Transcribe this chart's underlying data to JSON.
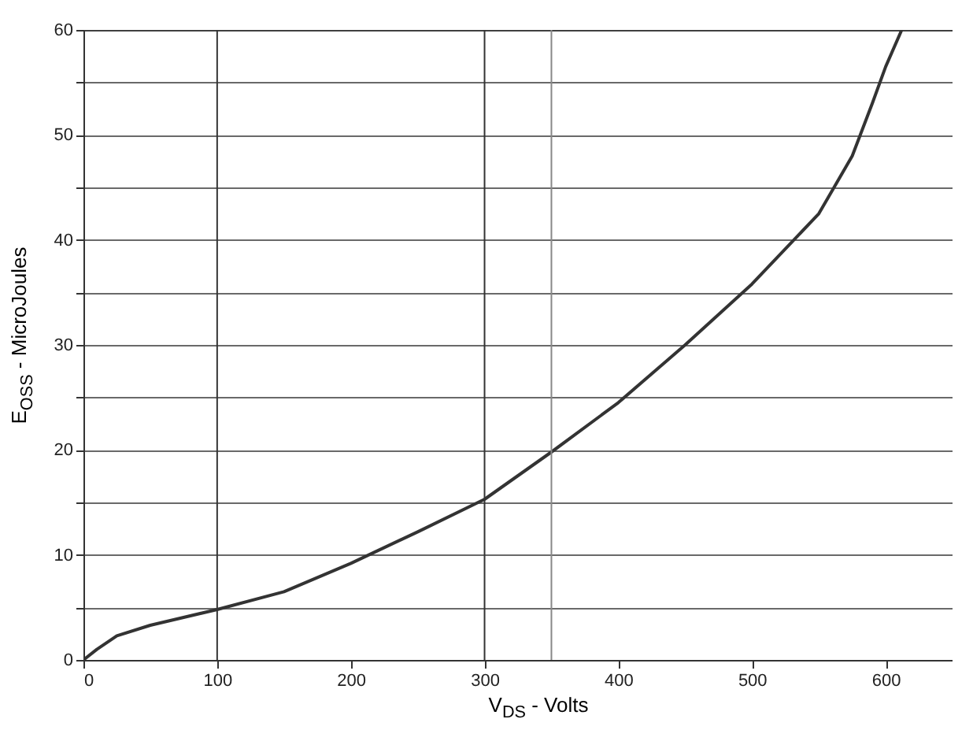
{
  "chart_data": {
    "type": "line",
    "xlabel": "V$_{DS}$ - Volts",
    "ylabel": "E$_{OSS}$ - MicroJoules",
    "x": [
      0,
      10,
      25,
      50,
      100,
      150,
      200,
      250,
      300,
      350,
      400,
      450,
      500,
      550,
      575,
      590,
      600,
      612
    ],
    "series": [
      {
        "color": "#333333",
        "values": [
          0,
          1,
          2.3,
          3.3,
          4.8,
          6.5,
          9.2,
          12.2,
          15.3,
          19.8,
          24.5,
          30,
          35.8,
          42.5,
          48,
          53,
          56.5,
          60
        ]
      }
    ],
    "xlim": [
      0,
      650
    ],
    "xticks": [
      0,
      100,
      200,
      300,
      400,
      500,
      600
    ],
    "ylim": [
      0,
      60
    ],
    "yticks": [
      0,
      {
        "value": 5,
        "label": null
      },
      10,
      {
        "value": 15,
        "label": null
      },
      20,
      {
        "value": 25,
        "label": null
      },
      30,
      {
        "value": 35,
        "label": null
      },
      40,
      {
        "value": 45,
        "label": null
      },
      50,
      {
        "value": 55,
        "label": null
      },
      60
    ],
    "grid": "y",
    "marker": "none",
    "line_style": "solid",
    "ref_lines": [
      {
        "axis": "x",
        "value": 100,
        "color": "#333333"
      },
      {
        "axis": "x",
        "value": 300,
        "color": "#333333"
      },
      {
        "axis": "x",
        "value": 350,
        "color": "#888888"
      }
    ]
  }
}
